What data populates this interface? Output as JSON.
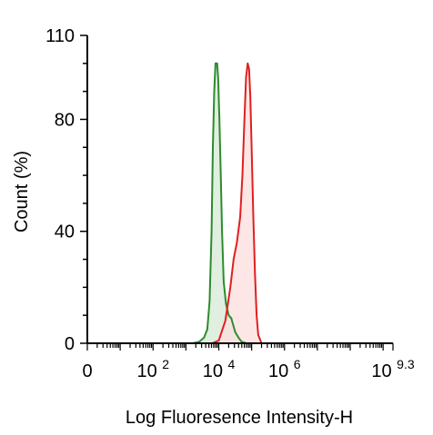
{
  "chart_data": {
    "type": "area",
    "title": "",
    "xlabel": "Log Fluoresence Intensity-H",
    "ylabel": "Count  (%)",
    "ylim": [
      0,
      110
    ],
    "xlim": [
      0,
      9.3
    ],
    "x_scale": "log10 (decades)",
    "y_ticks": [
      "0",
      "40",
      "80",
      "110"
    ],
    "y_tick_values": [
      0,
      40,
      80,
      110
    ],
    "x_ticks": [
      {
        "value": 0,
        "base": "0",
        "exp": ""
      },
      {
        "value": 2,
        "base": "10",
        "exp": "2"
      },
      {
        "value": 4,
        "base": "10",
        "exp": "4"
      },
      {
        "value": 6,
        "base": "10",
        "exp": "6"
      },
      {
        "value": 9.3,
        "base": "10",
        "exp": "9.3"
      }
    ],
    "grid": false,
    "legend": "none",
    "series": [
      {
        "color": "#2e8b2e",
        "fill": "#d8ebd8",
        "points": [
          [
            3.2,
            0
          ],
          [
            3.4,
            0.5
          ],
          [
            3.55,
            2
          ],
          [
            3.65,
            5
          ],
          [
            3.72,
            15
          ],
          [
            3.78,
            40
          ],
          [
            3.82,
            70
          ],
          [
            3.86,
            90
          ],
          [
            3.9,
            100
          ],
          [
            3.95,
            100
          ],
          [
            3.98,
            95
          ],
          [
            4.02,
            80
          ],
          [
            4.06,
            60
          ],
          [
            4.1,
            40
          ],
          [
            4.15,
            22
          ],
          [
            4.22,
            14
          ],
          [
            4.3,
            10
          ],
          [
            4.38,
            9
          ],
          [
            4.45,
            6
          ],
          [
            4.5,
            4
          ],
          [
            4.6,
            2
          ],
          [
            4.7,
            0.5
          ],
          [
            4.85,
            0
          ]
        ]
      },
      {
        "color": "#e02020",
        "fill": "#fbe0e0",
        "points": [
          [
            3.8,
            0
          ],
          [
            4.0,
            1
          ],
          [
            4.2,
            8
          ],
          [
            4.35,
            20
          ],
          [
            4.45,
            30
          ],
          [
            4.55,
            36
          ],
          [
            4.65,
            45
          ],
          [
            4.72,
            60
          ],
          [
            4.78,
            80
          ],
          [
            4.83,
            95
          ],
          [
            4.88,
            100
          ],
          [
            4.92,
            98
          ],
          [
            4.96,
            88
          ],
          [
            5.0,
            70
          ],
          [
            5.05,
            45
          ],
          [
            5.1,
            25
          ],
          [
            5.15,
            10
          ],
          [
            5.2,
            3
          ],
          [
            5.3,
            0
          ]
        ]
      }
    ]
  }
}
